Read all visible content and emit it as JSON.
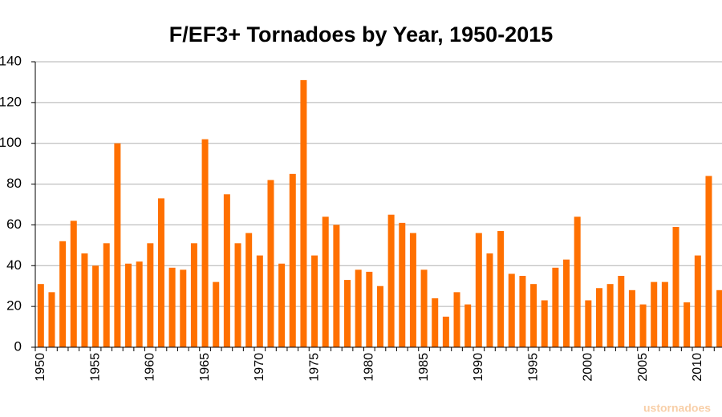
{
  "chart_data": {
    "type": "bar",
    "title": "F/EF3+ Tornadoes by Year, 1950-2015",
    "categories": [
      "1950",
      null,
      null,
      null,
      null,
      "1955",
      null,
      null,
      null,
      null,
      "1960",
      null,
      null,
      null,
      null,
      "1965",
      null,
      null,
      null,
      null,
      "1970",
      null,
      null,
      null,
      null,
      "1975",
      null,
      null,
      null,
      null,
      "1980",
      null,
      null,
      null,
      null,
      "1985",
      null,
      null,
      null,
      null,
      "1990",
      null,
      null,
      null,
      null,
      "1995",
      null,
      null,
      null,
      null,
      "2000",
      null,
      null,
      null,
      null,
      "2005",
      null,
      null,
      null,
      null,
      "2010",
      null,
      null
    ],
    "values": [
      31,
      27,
      52,
      62,
      46,
      40,
      51,
      100,
      41,
      42,
      51,
      73,
      39,
      38,
      51,
      102,
      32,
      75,
      51,
      56,
      45,
      82,
      41,
      85,
      131,
      45,
      64,
      60,
      33,
      38,
      37,
      30,
      65,
      61,
      56,
      38,
      24,
      15,
      27,
      21,
      56,
      46,
      57,
      36,
      35,
      31,
      23,
      39,
      43,
      64,
      23,
      29,
      31,
      35,
      28,
      21,
      32,
      32,
      59,
      22,
      45,
      84,
      28
    ],
    "color": "#ff7000",
    "ylim": [
      0,
      140
    ],
    "yticks": [
      0,
      20,
      40,
      60,
      80,
      100,
      120,
      140
    ],
    "grid": true,
    "annotation": "ustornadoes"
  }
}
